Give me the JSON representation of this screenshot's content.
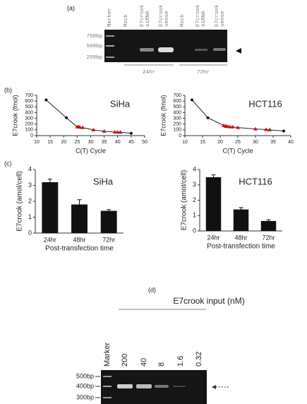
{
  "panel_a": {
    "label": "(a)",
    "lanes": [
      [
        "Marker"
      ],
      [
        "Mock"
      ],
      [
        "E7crook",
        "siRNA"
      ],
      [
        "E7crook",
        "sense"
      ],
      [
        "Mock"
      ],
      [
        "E7crook",
        "siRNA"
      ],
      [
        "E7crook",
        "sense"
      ]
    ],
    "ladder": [
      "750bp",
      "500bp",
      "250bp"
    ],
    "groups": [
      "24hr",
      "72hr"
    ]
  },
  "panel_b_label": "(b)",
  "panel_c_label": "(c)",
  "chart_data": [
    {
      "type": "line",
      "title": "SiHa",
      "xlabel": "C(T) Cycle",
      "ylabel": "E7crook (fmol)",
      "xlim": [
        10,
        50
      ],
      "xticks": [
        10,
        15,
        20,
        25,
        30,
        35,
        40,
        45,
        50
      ],
      "ylim": [
        0,
        700
      ],
      "yticks": [
        0,
        100,
        200,
        300,
        400,
        500,
        600,
        700
      ],
      "series": [
        {
          "color": "#222222",
          "x": [
            13.5,
            21,
            25,
            25.5,
            26,
            27,
            31,
            35,
            39,
            40,
            41,
            45
          ],
          "values": [
            620,
            310,
            150,
            155,
            145,
            140,
            100,
            75,
            62,
            60,
            58,
            40
          ],
          "point_colors": [
            "#111111",
            "#111111",
            "#cc1111",
            "#cc1111",
            "#cc1111",
            "#cc1111",
            "#cc1111",
            "#cc1111",
            "#cc1111",
            "#cc1111",
            "#cc1111",
            "#111111"
          ],
          "point_markers": [
            "circle",
            "circle",
            "triangle",
            "triangle",
            "triangle",
            "triangle",
            "triangle",
            "triangle",
            "triangle",
            "triangle",
            "triangle",
            "circle"
          ]
        }
      ]
    },
    {
      "type": "line",
      "title": "HCT116",
      "xlabel": "C(T) Cycle",
      "ylabel": "E7crook (fmol)",
      "xlim": [
        10,
        40
      ],
      "xticks": [
        10,
        15,
        20,
        25,
        30,
        35,
        40
      ],
      "ylim": [
        0,
        700
      ],
      "yticks": [
        0,
        100,
        200,
        300,
        400,
        500,
        600,
        700
      ],
      "series": [
        {
          "color": "#222222",
          "x": [
            12,
            16.5,
            21,
            21.5,
            21.8,
            22.2,
            22.8,
            23.5,
            25,
            30,
            33,
            34,
            38
          ],
          "values": [
            620,
            310,
            175,
            165,
            160,
            155,
            152,
            150,
            140,
            115,
            105,
            100,
            80
          ],
          "point_colors": [
            "#111111",
            "#111111",
            "#cc1111",
            "#cc1111",
            "#cc1111",
            "#cc1111",
            "#cc1111",
            "#cc1111",
            "#cc1111",
            "#cc1111",
            "#cc1111",
            "#cc1111",
            "#111111"
          ],
          "point_markers": [
            "circle",
            "circle",
            "triangle",
            "triangle",
            "triangle",
            "triangle",
            "triangle",
            "triangle",
            "triangle",
            "triangle",
            "triangle",
            "triangle",
            "circle"
          ]
        }
      ]
    },
    {
      "type": "bar",
      "title": "SiHa",
      "xlabel": "Post-transfection time",
      "ylabel": "E7crook (amol/cell)",
      "categories": [
        "24hr",
        "48hr",
        "72hr"
      ],
      "values": [
        3.2,
        1.8,
        1.4
      ],
      "errors": [
        0.2,
        0.3,
        0.08
      ],
      "color": "#111111",
      "ylim": [
        0,
        4
      ],
      "yticks": [
        0,
        1,
        2,
        3,
        4
      ]
    },
    {
      "type": "bar",
      "title": "HCT116",
      "xlabel": "Post-transfection time",
      "ylabel": "E7crook (amol/cell)",
      "categories": [
        "24hr",
        "48hr",
        "72hr"
      ],
      "values": [
        3.5,
        1.4,
        0.65
      ],
      "errors": [
        0.15,
        0.12,
        0.08
      ],
      "color": "#111111",
      "ylim": [
        0,
        4
      ],
      "yticks": [
        0,
        1,
        2,
        3,
        4
      ]
    }
  ],
  "panel_d": {
    "label": "(d)",
    "title": "E7crook input (nM)",
    "lanes": [
      "Marker",
      "200",
      "40",
      "8",
      "1.6",
      "0.32"
    ],
    "ladder": [
      "500bp",
      "400bp",
      "300bp"
    ]
  }
}
